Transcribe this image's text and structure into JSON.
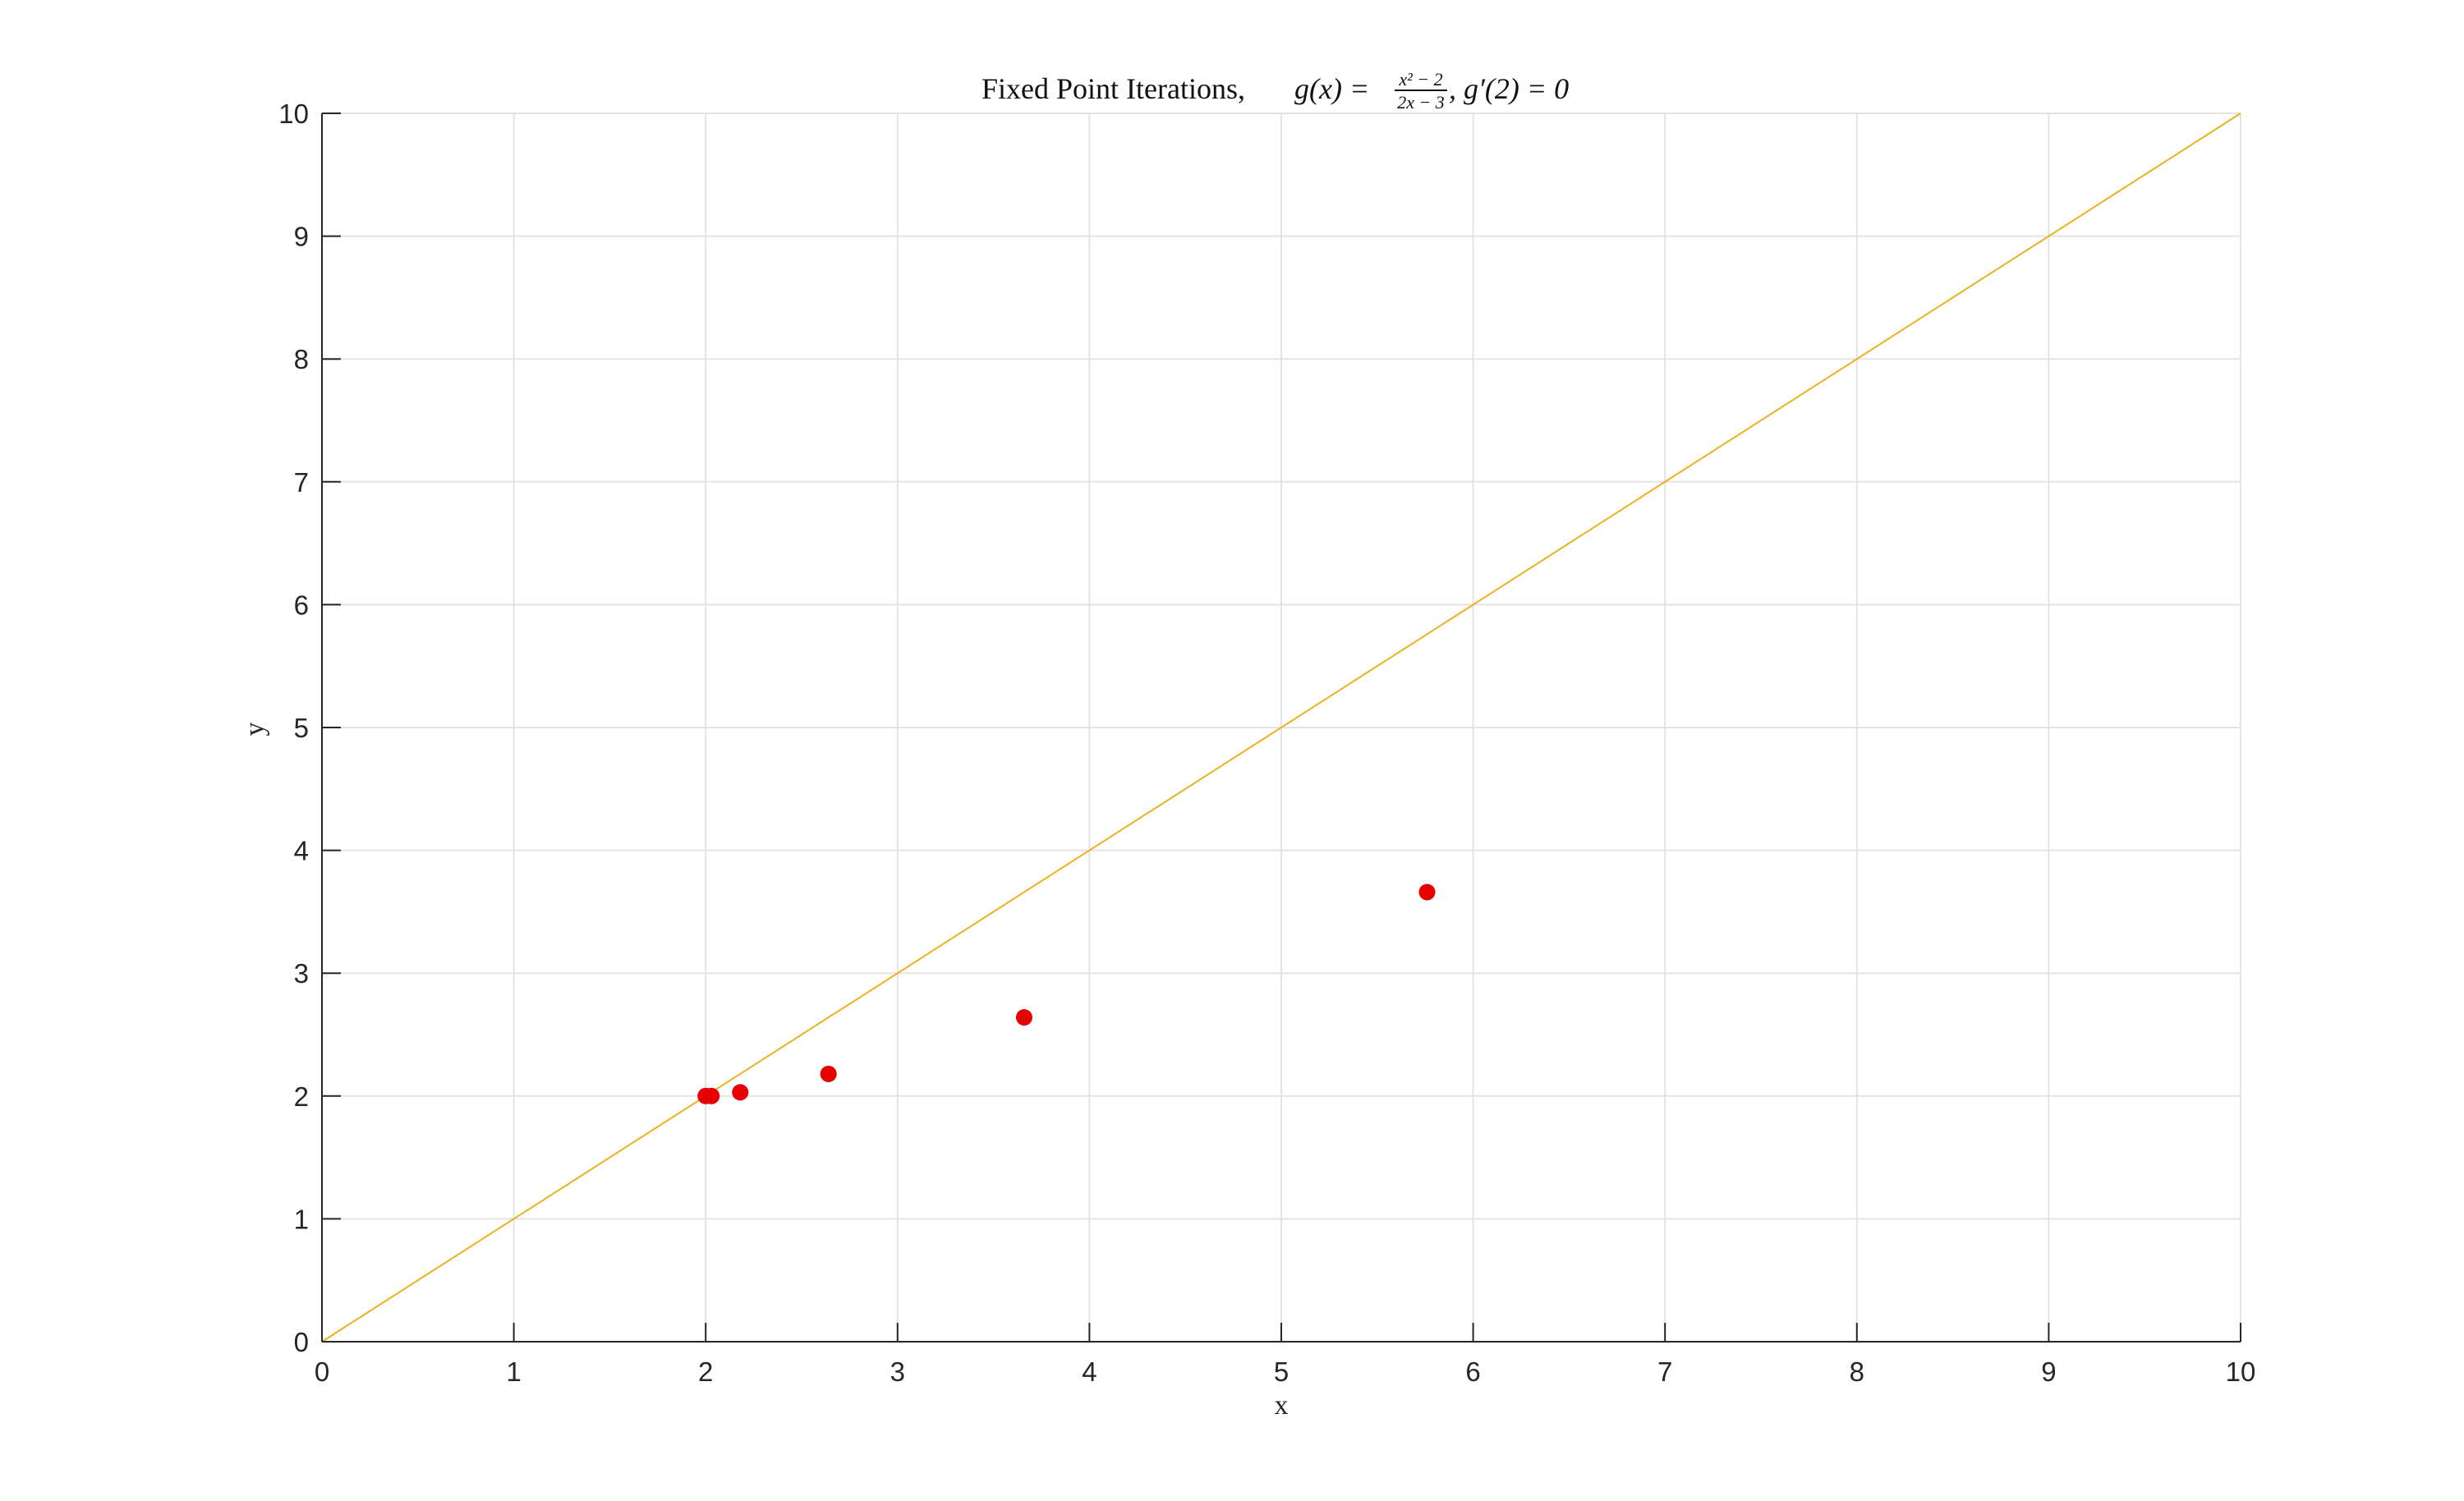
{
  "chart_data": {
    "type": "scatter",
    "title": {
      "prefix": "Fixed Point Iterations, ",
      "func_lhs": "g(x) = ",
      "numerator": "x² − 2",
      "denominator": "2x − 3",
      "suffix": ", g′(2) = 0"
    },
    "xlabel": "x",
    "ylabel": "y",
    "xlim": [
      0,
      10
    ],
    "ylim": [
      0,
      10
    ],
    "xticks": [
      0,
      1,
      2,
      3,
      4,
      5,
      6,
      7,
      8,
      9,
      10
    ],
    "yticks": [
      0,
      1,
      2,
      3,
      4,
      5,
      6,
      7,
      8,
      9,
      10
    ],
    "grid": true,
    "legend": "none",
    "series": [
      {
        "kind": "line",
        "x": [
          0,
          10
        ],
        "y": [
          0,
          10
        ],
        "color": "#EDB120"
      },
      {
        "kind": "scatter",
        "x": [
          5.76,
          3.66,
          2.64,
          2.18,
          2.03,
          2.0
        ],
        "y": [
          3.66,
          2.64,
          2.18,
          2.03,
          2.0,
          2.0
        ],
        "color": "#E60000"
      }
    ]
  },
  "colors": {
    "grid": "#e3e3e3",
    "axis": "#262626"
  }
}
